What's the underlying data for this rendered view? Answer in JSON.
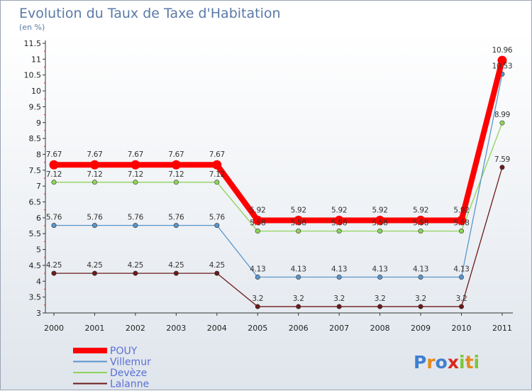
{
  "chart_data": {
    "type": "line",
    "title": "Evolution du Taux de Taxe d'Habitation",
    "subtitle": "(en %)",
    "xlabel": "",
    "ylabel": "",
    "categories": [
      "2000",
      "2001",
      "2002",
      "2003",
      "2004",
      "2005",
      "2006",
      "2007",
      "2008",
      "2009",
      "2010",
      "2011"
    ],
    "ylim": [
      3,
      11.5
    ],
    "yticks": [
      "3",
      "3.5",
      "4",
      "4.5",
      "5",
      "5.5",
      "6",
      "6.5",
      "7",
      "7.5",
      "8",
      "8.5",
      "9",
      "9.5",
      "10",
      "10.5",
      "11",
      "11.5"
    ],
    "grid": false,
    "legend_position": "bottom-left",
    "series": [
      {
        "name": "Lalanne",
        "color": "#6b1a1a",
        "values": [
          4.25,
          4.25,
          4.25,
          4.25,
          4.25,
          3.2,
          3.2,
          3.2,
          3.2,
          3.2,
          3.2,
          7.59
        ],
        "labels": [
          "4.25",
          "4.25",
          "4.25",
          "4.25",
          "4.25",
          "3.2",
          "3.2",
          "3.2",
          "3.2",
          "3.2",
          "3.2",
          "7.59"
        ]
      },
      {
        "name": "Devèze",
        "color": "#8fd45a",
        "values": [
          7.12,
          7.12,
          7.12,
          7.12,
          7.12,
          5.58,
          5.58,
          5.58,
          5.58,
          5.58,
          5.58,
          8.99
        ],
        "labels": [
          "7.12",
          "7.12",
          "7.12",
          "7.12",
          "7.12",
          "5.58",
          "5.58",
          "5.58",
          "5.58",
          "5.58",
          "5.58",
          "8.99"
        ]
      },
      {
        "name": "Villemur",
        "color": "#5a96cc",
        "values": [
          5.76,
          5.76,
          5.76,
          5.76,
          5.76,
          4.13,
          4.13,
          4.13,
          4.13,
          4.13,
          4.13,
          10.53
        ],
        "labels": [
          "5.76",
          "5.76",
          "5.76",
          "5.76",
          "5.76",
          "4.13",
          "4.13",
          "4.13",
          "4.13",
          "4.13",
          "4.13",
          "10.53"
        ]
      },
      {
        "name": "POUY",
        "color": "#ff0000",
        "values": [
          7.67,
          7.67,
          7.67,
          7.67,
          7.67,
          5.92,
          5.92,
          5.92,
          5.92,
          5.92,
          5.92,
          10.96
        ],
        "labels": [
          "7.67",
          "7.67",
          "7.67",
          "7.67",
          "7.67",
          "5.92",
          "5.92",
          "5.92",
          "5.92",
          "5.92",
          "5.92",
          "10.96"
        ]
      }
    ],
    "legend_order": [
      "POUY",
      "Villemur",
      "Devèze",
      "Lalanne"
    ]
  },
  "brand": {
    "letters": [
      "P",
      "r",
      "o",
      "x",
      "i",
      "t",
      "i"
    ],
    "colors": [
      "#3f7fd0",
      "#e58a1c",
      "#3f7fd0",
      "#d8281e",
      "#7cc63a",
      "#e58a1c",
      "#7cc63a"
    ]
  }
}
